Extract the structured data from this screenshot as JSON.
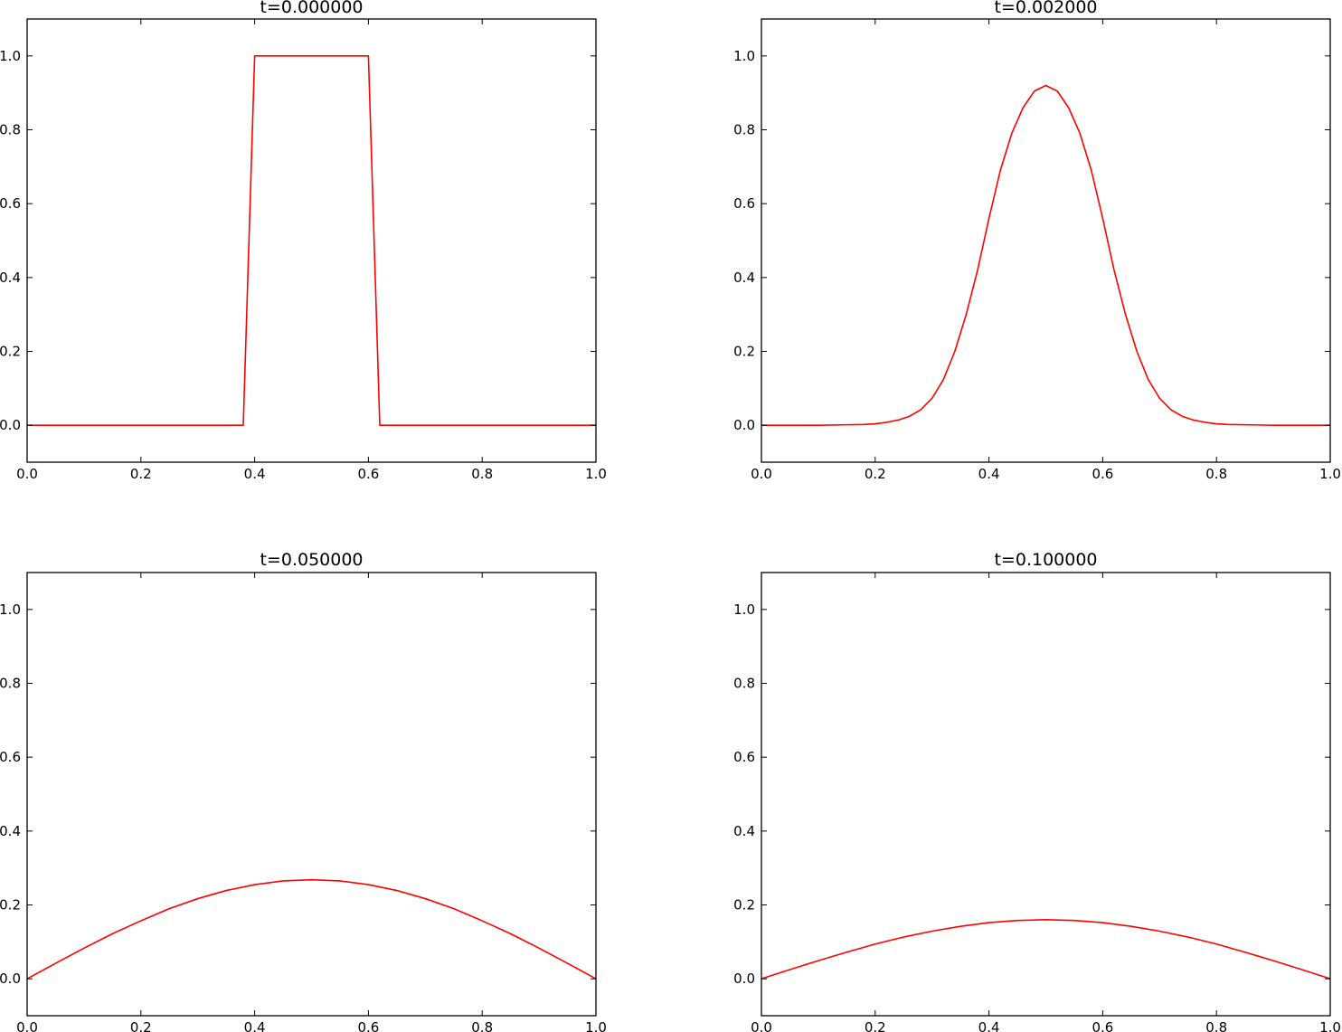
{
  "chart_data": [
    {
      "type": "line",
      "title": "t=0.000000",
      "xlim": [
        0.0,
        1.0
      ],
      "ylim": [
        -0.1,
        1.1
      ],
      "xticks": [
        "0.0",
        "0.2",
        "0.4",
        "0.6",
        "0.8",
        "1.0"
      ],
      "yticks": [
        "0.0",
        "0.2",
        "0.4",
        "0.6",
        "0.8",
        "1.0"
      ],
      "grid": false,
      "line_color": "#ff0000",
      "series": [
        {
          "x": [
            0.0,
            0.38,
            0.4,
            0.6,
            0.62,
            1.0
          ],
          "y": [
            0.0,
            0.0,
            1.0,
            1.0,
            0.0,
            0.0
          ]
        }
      ]
    },
    {
      "type": "line",
      "title": "t=0.002000",
      "xlim": [
        0.0,
        1.0
      ],
      "ylim": [
        -0.1,
        1.1
      ],
      "xticks": [
        "0.0",
        "0.2",
        "0.4",
        "0.6",
        "0.8",
        "1.0"
      ],
      "yticks": [
        "0.0",
        "0.2",
        "0.4",
        "0.6",
        "0.8",
        "1.0"
      ],
      "grid": false,
      "line_color": "#ff0000",
      "series": [
        {
          "x": [
            0.0,
            0.1,
            0.14,
            0.18,
            0.2,
            0.22,
            0.24,
            0.26,
            0.28,
            0.3,
            0.32,
            0.34,
            0.36,
            0.38,
            0.4,
            0.42,
            0.44,
            0.46,
            0.48,
            0.5,
            0.52,
            0.54,
            0.56,
            0.58,
            0.6,
            0.62,
            0.64,
            0.66,
            0.68,
            0.7,
            0.72,
            0.74,
            0.76,
            0.78,
            0.8,
            0.82,
            0.86,
            0.9,
            1.0
          ],
          "y": [
            0.0,
            0.0,
            0.001,
            0.002,
            0.004,
            0.008,
            0.014,
            0.024,
            0.042,
            0.073,
            0.124,
            0.2,
            0.3,
            0.42,
            0.56,
            0.69,
            0.79,
            0.86,
            0.905,
            0.92,
            0.905,
            0.86,
            0.79,
            0.69,
            0.56,
            0.42,
            0.3,
            0.2,
            0.124,
            0.073,
            0.042,
            0.024,
            0.014,
            0.008,
            0.004,
            0.002,
            0.001,
            0.0,
            0.0
          ]
        }
      ]
    },
    {
      "type": "line",
      "title": "t=0.050000",
      "xlim": [
        0.0,
        1.0
      ],
      "ylim": [
        -0.1,
        1.1
      ],
      "xticks": [
        "0.0",
        "0.2",
        "0.4",
        "0.6",
        "0.8",
        "1.0"
      ],
      "yticks": [
        "0.0",
        "0.2",
        "0.4",
        "0.6",
        "0.8",
        "1.0"
      ],
      "grid": false,
      "line_color": "#ff0000",
      "series": [
        {
          "x": [
            0.0,
            0.05,
            0.1,
            0.15,
            0.2,
            0.25,
            0.3,
            0.35,
            0.4,
            0.45,
            0.5,
            0.55,
            0.6,
            0.65,
            0.7,
            0.75,
            0.8,
            0.85,
            0.9,
            0.95,
            1.0
          ],
          "y": [
            0.0,
            0.042,
            0.083,
            0.122,
            0.157,
            0.19,
            0.217,
            0.239,
            0.255,
            0.265,
            0.268,
            0.265,
            0.255,
            0.239,
            0.217,
            0.19,
            0.157,
            0.122,
            0.083,
            0.042,
            0.0
          ]
        }
      ]
    },
    {
      "type": "line",
      "title": "t=0.100000",
      "xlim": [
        0.0,
        1.0
      ],
      "ylim": [
        -0.1,
        1.1
      ],
      "xticks": [
        "0.0",
        "0.2",
        "0.4",
        "0.6",
        "0.8",
        "1.0"
      ],
      "yticks": [
        "0.0",
        "0.2",
        "0.4",
        "0.6",
        "0.8",
        "1.0"
      ],
      "grid": false,
      "line_color": "#ff0000",
      "series": [
        {
          "x": [
            0.0,
            0.05,
            0.1,
            0.15,
            0.2,
            0.25,
            0.3,
            0.35,
            0.4,
            0.45,
            0.5,
            0.55,
            0.6,
            0.65,
            0.7,
            0.75,
            0.8,
            0.85,
            0.9,
            0.95,
            1.0
          ],
          "y": [
            0.0,
            0.025,
            0.049,
            0.072,
            0.094,
            0.113,
            0.129,
            0.142,
            0.152,
            0.158,
            0.16,
            0.158,
            0.152,
            0.142,
            0.129,
            0.113,
            0.094,
            0.072,
            0.049,
            0.025,
            0.0
          ]
        }
      ]
    }
  ]
}
